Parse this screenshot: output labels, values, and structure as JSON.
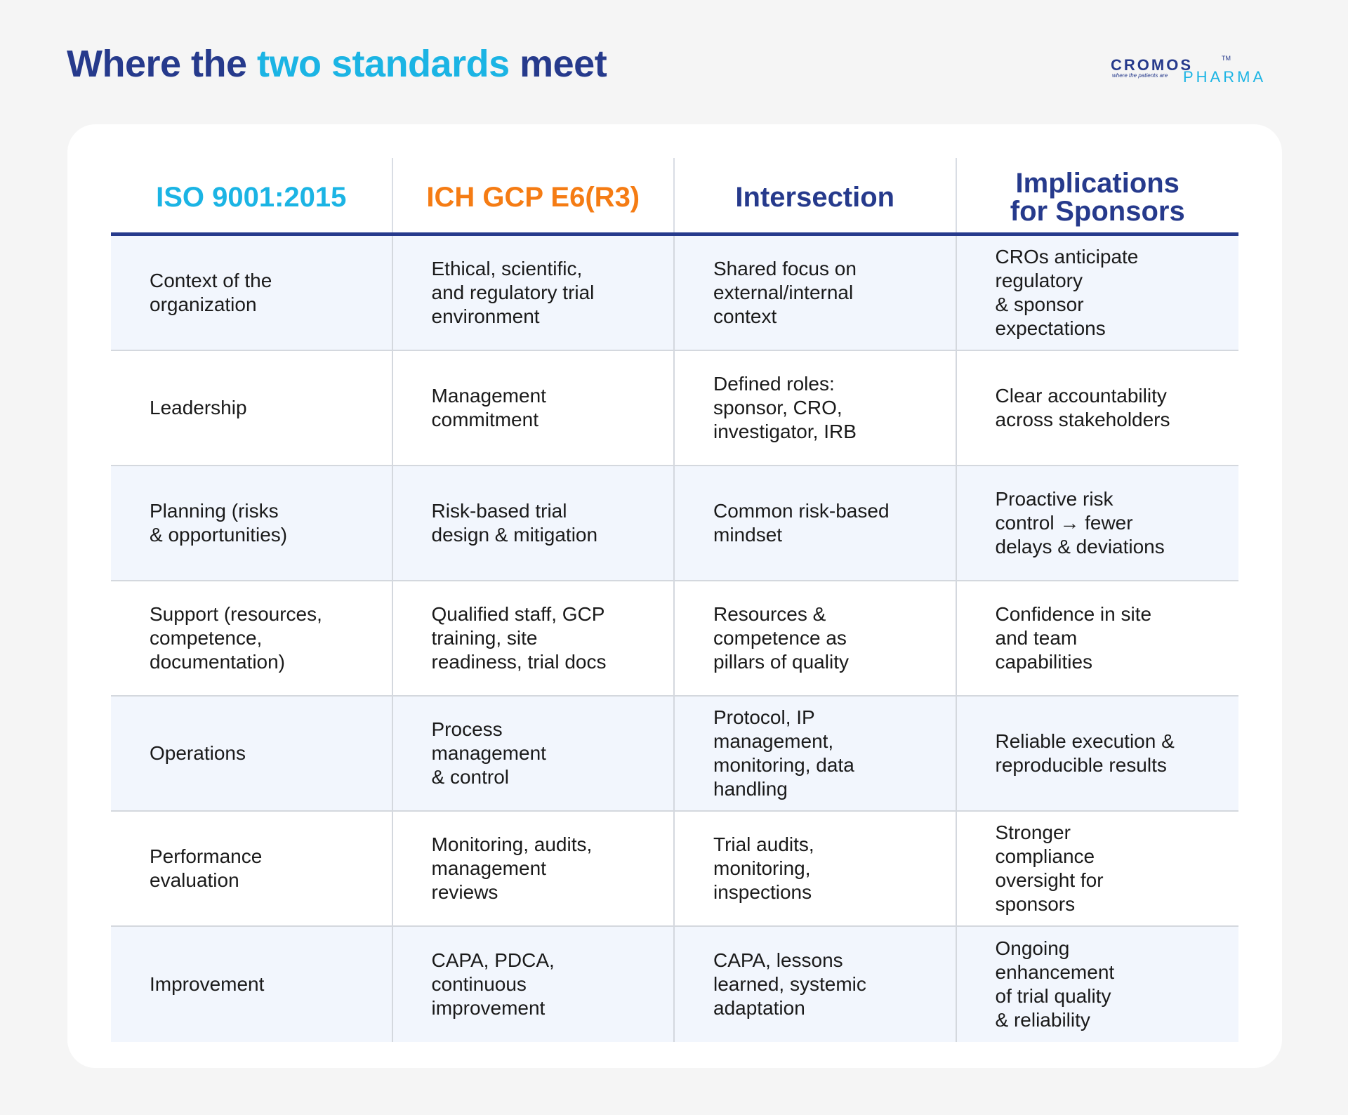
{
  "title": {
    "part1": "Where the ",
    "accent": "two standards",
    "part2": " meet"
  },
  "logo": {
    "top": "CROMOS",
    "tm": "TM",
    "tagline": "where the patients are",
    "bottom": "PHARMA"
  },
  "colors": {
    "navy": "#263a8c",
    "cyan": "#1bb4e4",
    "orange": "#f57c14",
    "row_shade": "#f2f6fd"
  },
  "table": {
    "headers": [
      "ISO 9001:2015",
      "ICH GCP E6(R3)",
      "Intersection",
      "Implications\nfor Sponsors"
    ],
    "rows": [
      [
        "Context of the\norganization",
        "Ethical, scientific,\nand regulatory trial\nenvironment",
        "Shared focus on\nexternal/internal\ncontext",
        "CROs anticipate\nregulatory\n& sponsor\nexpectations"
      ],
      [
        "Leadership",
        "Management\ncommitment",
        "Defined roles:\nsponsor, CRO,\ninvestigator, IRB",
        "Clear accountability\nacross stakeholders"
      ],
      [
        "Planning (risks\n& opportunities)",
        "Risk-based trial\ndesign & mitigation",
        "Common risk-based\nmindset",
        "Proactive risk\ncontrol → fewer\ndelays & deviations"
      ],
      [
        "Support (resources,\ncompetence,\ndocumentation)",
        "Qualified staff, GCP\ntraining, site\nreadiness, trial docs",
        "Resources &\ncompetence as\npillars of quality",
        "Confidence in site\nand team\ncapabilities"
      ],
      [
        "Operations",
        "Process\nmanagement\n& control",
        "Protocol, IP\nmanagement,\nmonitoring, data\nhandling",
        "Reliable execution &\nreproducible results"
      ],
      [
        "Performance\nevaluation",
        "Monitoring, audits,\nmanagement\nreviews",
        "Trial audits,\nmonitoring,\ninspections",
        "Stronger\ncompliance\noversight for\nsponsors"
      ],
      [
        "Improvement",
        "CAPA, PDCA,\ncontinuous\nimprovement",
        "CAPA, lessons\nlearned, systemic\nadaptation",
        "Ongoing\nenhancement\nof trial quality\n& reliability"
      ]
    ]
  }
}
